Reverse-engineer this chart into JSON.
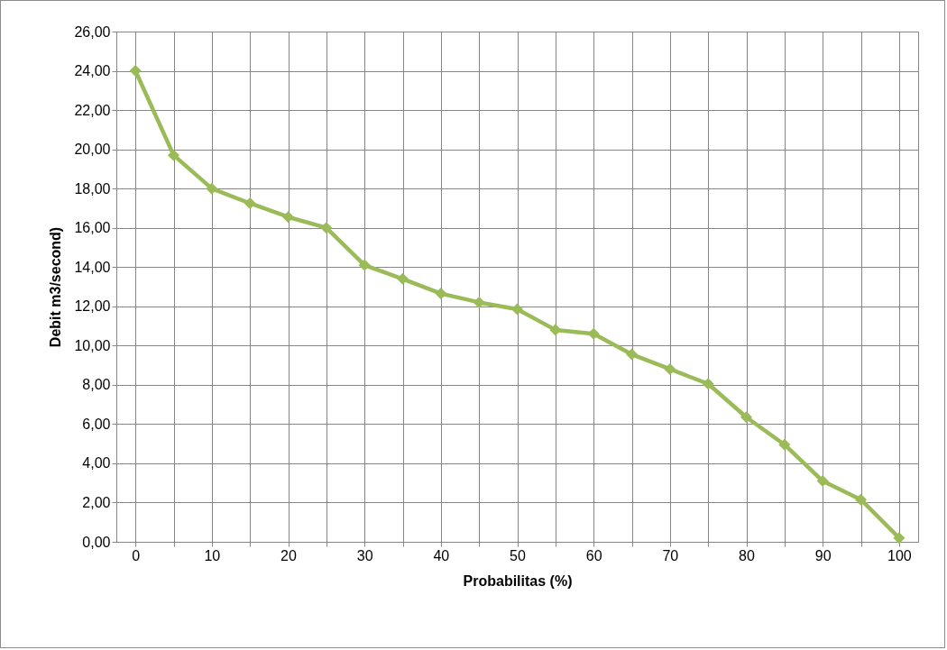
{
  "chart_data": {
    "type": "line",
    "xlabel": "Probabilitas (%)",
    "ylabel": "Debit m3/second)",
    "x": [
      0,
      5,
      10,
      15,
      20,
      25,
      30,
      35,
      40,
      45,
      50,
      55,
      60,
      65,
      70,
      75,
      80,
      85,
      90,
      95,
      100
    ],
    "series": [
      {
        "color": "#9bbb59",
        "values": [
          24.0,
          19.7,
          18.0,
          17.25,
          16.55,
          16.0,
          14.1,
          13.4,
          12.65,
          12.2,
          11.85,
          10.8,
          10.6,
          9.55,
          8.8,
          8.05,
          6.35,
          4.95,
          3.1,
          2.15,
          0.2
        ]
      }
    ],
    "xlim": [
      -2.5,
      102.5
    ],
    "xticks": [
      0,
      {
        "value": 5,
        "label": null
      },
      10,
      {
        "value": 15,
        "label": null
      },
      20,
      {
        "value": 25,
        "label": null
      },
      30,
      {
        "value": 35,
        "label": null
      },
      40,
      {
        "value": 45,
        "label": null
      },
      50,
      {
        "value": 55,
        "label": null
      },
      60,
      {
        "value": 65,
        "label": null
      },
      70,
      {
        "value": 75,
        "label": null
      },
      80,
      {
        "value": 85,
        "label": null
      },
      90,
      {
        "value": 95,
        "label": null
      },
      100
    ],
    "ylim": [
      0,
      26
    ],
    "yticks": [
      {
        "value": 0,
        "label": "0,00"
      },
      {
        "value": 2,
        "label": "2,00"
      },
      {
        "value": 4,
        "label": "4,00"
      },
      {
        "value": 6,
        "label": "6,00"
      },
      {
        "value": 8,
        "label": "8,00"
      },
      {
        "value": 10,
        "label": "10,00"
      },
      {
        "value": 12,
        "label": "12,00"
      },
      {
        "value": 14,
        "label": "14,00"
      },
      {
        "value": 16,
        "label": "16,00"
      },
      {
        "value": 18,
        "label": "18,00"
      },
      {
        "value": 20,
        "label": "20,00"
      },
      {
        "value": 22,
        "label": "22,00"
      },
      {
        "value": 24,
        "label": "24,00"
      },
      {
        "value": 26,
        "label": "26,00"
      }
    ],
    "grid": true,
    "marker": "diamond",
    "line_style": "solid"
  }
}
